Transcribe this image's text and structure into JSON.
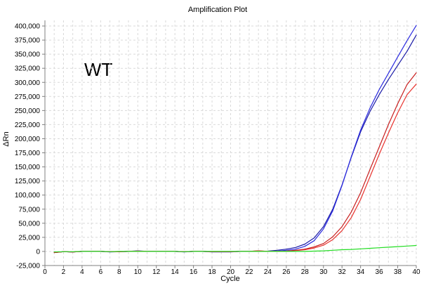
{
  "chart_data": {
    "type": "line",
    "title": "Amplification Plot",
    "xlabel": "Cycle",
    "ylabel": "ΔRn",
    "annotation": "WT",
    "xlim": [
      0,
      40
    ],
    "ylim": [
      -25000,
      410000
    ],
    "x_ticks": [
      0,
      2,
      4,
      6,
      8,
      10,
      12,
      14,
      16,
      18,
      20,
      22,
      24,
      26,
      28,
      30,
      32,
      34,
      36,
      38,
      40
    ],
    "y_ticks": [
      -25000,
      0,
      25000,
      50000,
      75000,
      100000,
      125000,
      150000,
      175000,
      200000,
      225000,
      250000,
      275000,
      300000,
      325000,
      350000,
      375000,
      400000
    ],
    "y_tick_labels": [
      "-25,000",
      "0",
      "25,000",
      "50,000",
      "75,000",
      "100,000",
      "125,000",
      "150,000",
      "175,000",
      "200,000",
      "225,000",
      "250,000",
      "275,000",
      "300,000",
      "325,000",
      "350,000",
      "375,000",
      "400,000"
    ],
    "grid": true,
    "legend": false,
    "x": [
      1,
      2,
      3,
      4,
      5,
      6,
      7,
      8,
      9,
      10,
      11,
      12,
      13,
      14,
      15,
      16,
      17,
      18,
      19,
      20,
      21,
      22,
      23,
      24,
      25,
      26,
      27,
      28,
      29,
      30,
      31,
      32,
      33,
      34,
      35,
      36,
      37,
      38,
      39,
      40
    ],
    "series": [
      {
        "color": "#1a1aa6",
        "values": [
          -2000,
          -500,
          -1000,
          0,
          0,
          0,
          -500,
          -500,
          0,
          1000,
          0,
          0,
          0,
          0,
          -500,
          0,
          0,
          -500,
          -500,
          -500,
          0,
          0,
          0,
          500,
          2000,
          4000,
          7000,
          13000,
          24000,
          44000,
          75000,
          118000,
          167000,
          212000,
          248000,
          278000,
          305000,
          330000,
          355000,
          384000
        ]
      },
      {
        "color": "#2b2be0",
        "values": [
          -1500,
          -500,
          -1000,
          0,
          0,
          0,
          -1000,
          -500,
          0,
          500,
          0,
          0,
          0,
          0,
          -1000,
          0,
          0,
          -1000,
          -1000,
          -1000,
          0,
          0,
          0,
          0,
          500,
          2000,
          4000,
          9000,
          19000,
          40000,
          72000,
          117000,
          168000,
          215000,
          254000,
          287000,
          316000,
          345000,
          374000,
          401000
        ]
      },
      {
        "color": "#e8322d",
        "values": [
          -2000,
          -500,
          -1000,
          0,
          0,
          0,
          -500,
          -500,
          0,
          500,
          0,
          0,
          0,
          0,
          -500,
          0,
          0,
          -500,
          -500,
          -500,
          0,
          0,
          1000,
          0,
          0,
          500,
          1500,
          3000,
          6000,
          11000,
          21000,
          37000,
          60000,
          92000,
          132000,
          172000,
          210000,
          246000,
          278000,
          297000
        ]
      },
      {
        "color": "#c81e1e",
        "values": [
          -2000,
          -500,
          -1000,
          0,
          0,
          0,
          -500,
          -500,
          0,
          500,
          0,
          0,
          0,
          0,
          -500,
          0,
          0,
          -500,
          -500,
          -500,
          0,
          0,
          1000,
          0,
          0,
          500,
          2000,
          4000,
          8000,
          14000,
          26000,
          44000,
          70000,
          104000,
          145000,
          185000,
          225000,
          262000,
          296000,
          317000
        ]
      },
      {
        "color": "#22dd22",
        "values": [
          -1000,
          -500,
          -500,
          0,
          0,
          0,
          -500,
          0,
          0,
          0,
          0,
          0,
          0,
          0,
          -500,
          0,
          0,
          0,
          0,
          0,
          0,
          0,
          0,
          0,
          0,
          0,
          0,
          0,
          500,
          1000,
          2000,
          3000,
          3500,
          4500,
          5500,
          6500,
          7500,
          8500,
          9500,
          10500
        ]
      }
    ]
  }
}
